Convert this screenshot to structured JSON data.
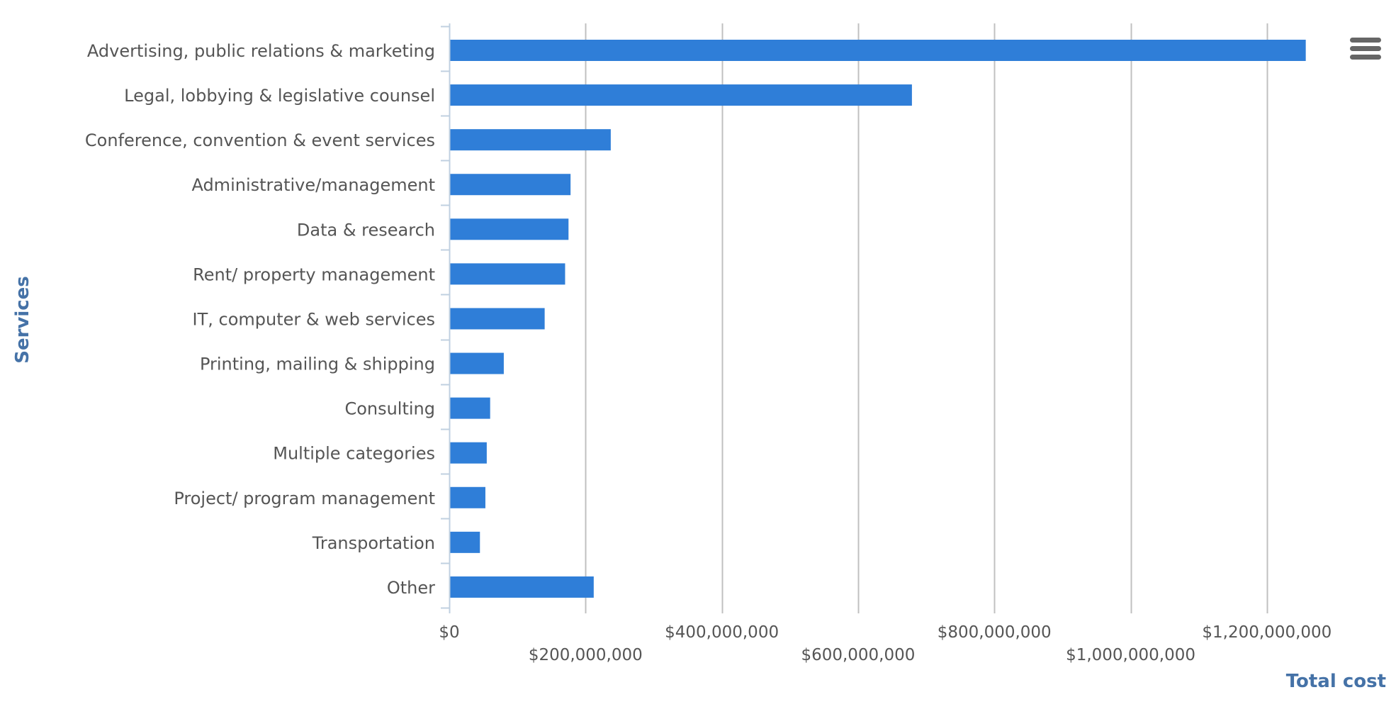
{
  "chart_data": {
    "type": "bar",
    "orientation": "horizontal",
    "categories": [
      "Advertising, public relations & marketing",
      "Legal, lobbying & legislative counsel",
      "Conference, convention & event services",
      "Administrative/management",
      "Data & research",
      "Rent/ property management",
      "IT, computer & web services",
      "Printing, mailing & shipping",
      "Consulting",
      "Multiple categories",
      "Project/ program management",
      "Transportation",
      "Other"
    ],
    "values": [
      1257000000,
      679000000,
      237000000,
      178000000,
      175000000,
      170000000,
      140000000,
      80000000,
      60000000,
      55000000,
      53000000,
      45000000,
      212000000
    ],
    "xlabel": "Total cost",
    "ylabel": "Services",
    "xlim": [
      0,
      1300000000
    ],
    "x_ticks": [
      0,
      200000000,
      400000000,
      600000000,
      800000000,
      1000000000,
      1200000000
    ],
    "x_tick_labels": [
      "$0",
      "$200,000,000",
      "$400,000,000",
      "$600,000,000",
      "$800,000,000",
      "$1,000,000,000",
      "$1,200,000,000"
    ],
    "grid": true,
    "bar_color": "#2f7ed8",
    "grid_color": "#c0c0c0",
    "axis_color": "#c0d0e0",
    "title_color": "#4572a7",
    "legend": "none"
  },
  "menu": {
    "icon": "hamburger-menu-icon"
  }
}
